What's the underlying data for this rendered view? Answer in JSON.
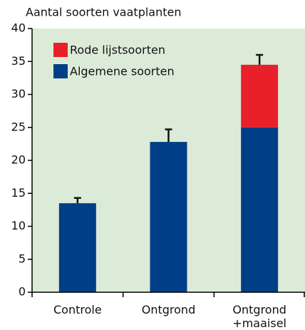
{
  "chart_data": {
    "type": "stacked-bar",
    "y_label": "Aantal soorten vaatplanten",
    "categories": [
      "Controle",
      "Ontgrond",
      "Ontgrond +maaisel"
    ],
    "series": [
      {
        "name": "Algemene soorten",
        "color": "#003f87",
        "values": [
          13.5,
          22.8,
          25
        ],
        "errors": [
          0.8,
          1.9,
          null
        ]
      },
      {
        "name": "Rode lijstsoorten",
        "color": "#e8202a",
        "values": [
          null,
          null,
          9.5
        ],
        "errors": [
          null,
          null,
          1.5
        ]
      }
    ],
    "ylim": [
      0,
      40
    ],
    "yticks": [
      0,
      5,
      10,
      15,
      20,
      25,
      30,
      35,
      40
    ],
    "background": "#dcebd8",
    "legend": "top-left"
  }
}
